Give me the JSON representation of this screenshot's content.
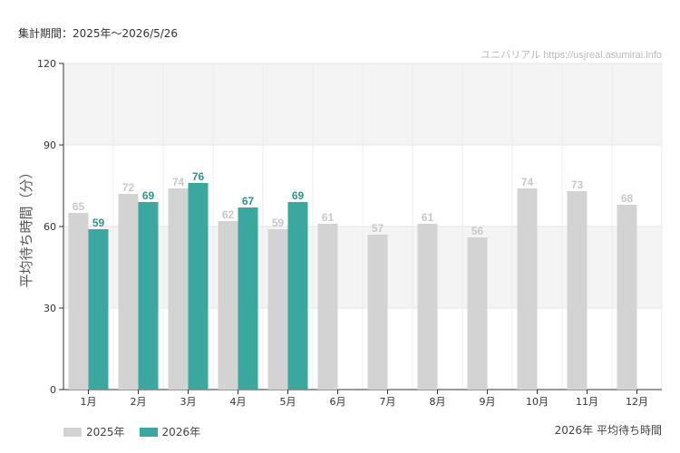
{
  "header": {
    "period_label": "集計期間：2025年～2026/5/26",
    "watermark": "ユニバリアル  https://usjreal.asumirai.info"
  },
  "footer": {
    "chart_title": "2026年 平均待ち時間"
  },
  "colors": {
    "series_2025": "#d3d3d3",
    "series_2026": "#3aa89f",
    "band": "#f4f4f4",
    "label_2025": "#c8c8c8",
    "label_2026": "#2e948c"
  },
  "chart_data": {
    "type": "bar",
    "title": "2026年 平均待ち時間",
    "ylabel": "平均待ち時間（分）",
    "xlabel": "",
    "ylim": [
      0,
      120
    ],
    "yticks": [
      "0",
      "30",
      "60",
      "90",
      "120"
    ],
    "categories": [
      "1月",
      "2月",
      "3月",
      "4月",
      "5月",
      "6月",
      "7月",
      "8月",
      "9月",
      "10月",
      "11月",
      "12月"
    ],
    "series": [
      {
        "name": "2025年",
        "values": [
          65,
          72,
          74,
          62,
          59,
          61,
          57,
          61,
          56,
          74,
          73,
          68
        ]
      },
      {
        "name": "2026年",
        "values": [
          59,
          69,
          76,
          67,
          69,
          null,
          null,
          null,
          null,
          null,
          null,
          null
        ]
      }
    ],
    "legend_position": "bottom-left",
    "grid": true
  }
}
